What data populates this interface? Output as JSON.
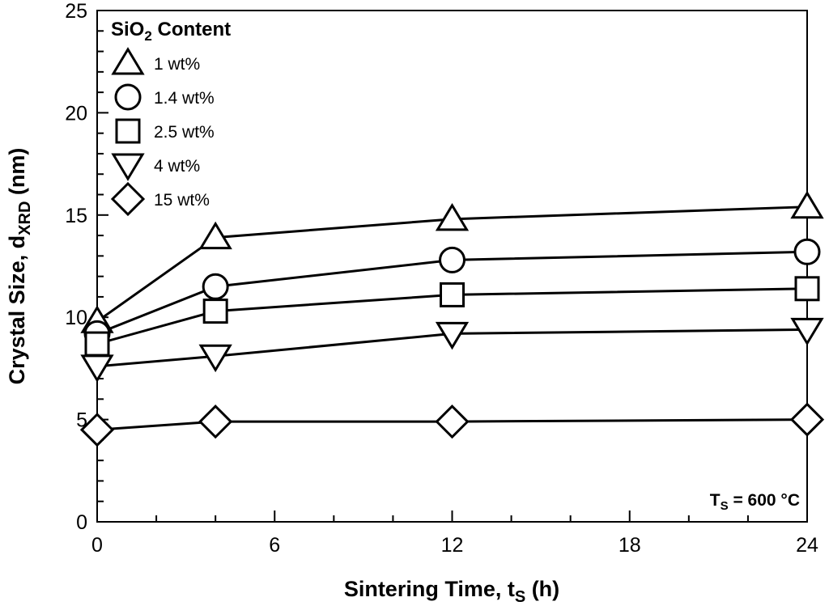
{
  "chart_data": {
    "type": "line",
    "xlabel": {
      "main": "Sintering Time, t",
      "sub": "S",
      "unit": " (h)"
    },
    "ylabel": {
      "main": "Crystal Size, d",
      "sub": "XRD",
      "unit": " (nm)"
    },
    "xlim": [
      0,
      24
    ],
    "ylim": [
      0,
      25
    ],
    "xticks": [
      0,
      6,
      12,
      18,
      24
    ],
    "yticks": [
      0,
      5,
      10,
      15,
      20,
      25
    ],
    "legend": {
      "title": {
        "pre": "SiO",
        "sub": "2",
        "post": " Content"
      },
      "position": "top-left"
    },
    "annotation": {
      "pre": "T",
      "sub": "S",
      "post": " = 600 °C"
    },
    "series": [
      {
        "name": "1 wt%",
        "marker": "triangle-up",
        "x": [
          0,
          4,
          12,
          24
        ],
        "y": [
          9.8,
          13.9,
          14.8,
          15.4
        ]
      },
      {
        "name": "1.4 wt%",
        "marker": "circle",
        "x": [
          0,
          4,
          12,
          24
        ],
        "y": [
          9.2,
          11.5,
          12.8,
          13.2
        ]
      },
      {
        "name": "2.5 wt%",
        "marker": "square",
        "x": [
          0,
          4,
          12,
          24
        ],
        "y": [
          8.7,
          10.3,
          11.1,
          11.4
        ]
      },
      {
        "name": "4 wt%",
        "marker": "triangle-down",
        "x": [
          0,
          4,
          12,
          24
        ],
        "y": [
          7.6,
          8.1,
          9.2,
          9.4
        ]
      },
      {
        "name": "15 wt%",
        "marker": "diamond",
        "x": [
          0,
          4,
          12,
          24
        ],
        "y": [
          4.5,
          4.9,
          4.9,
          5.0
        ]
      }
    ]
  }
}
